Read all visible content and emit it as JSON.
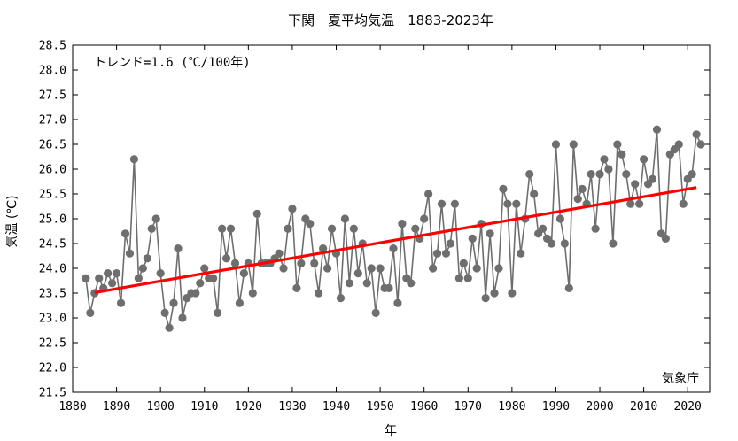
{
  "chart_data": {
    "type": "line",
    "title": "下関　夏平均気温　1883-2023年",
    "xlabel": "年",
    "ylabel": "気温 (℃)",
    "xlim": [
      1880,
      2025
    ],
    "ylim": [
      21.5,
      28.5
    ],
    "xticks": [
      1880,
      1890,
      1900,
      1910,
      1920,
      1930,
      1940,
      1950,
      1960,
      1970,
      1980,
      1990,
      2000,
      2010,
      2020
    ],
    "yticks": [
      21.5,
      22.0,
      22.5,
      23.0,
      23.5,
      24.0,
      24.5,
      25.0,
      25.5,
      26.0,
      26.5,
      27.0,
      27.5,
      28.0,
      28.5
    ],
    "grid": false,
    "annotation": "トレンド=1.6 (℃/100年)",
    "source": "気象庁",
    "colors": {
      "series": "#6e6e6e",
      "trend": "#ff0000",
      "axis": "#000000"
    },
    "series": [
      {
        "x": [
          1883,
          1884,
          1885,
          1886,
          1887,
          1888,
          1889,
          1890,
          1891,
          1892,
          1893,
          1894,
          1895,
          1896,
          1897,
          1898,
          1899,
          1900,
          1901,
          1902,
          1903,
          1904,
          1905,
          1906,
          1907,
          1908,
          1909,
          1910,
          1911,
          1912,
          1913,
          1914,
          1915,
          1916,
          1917,
          1918,
          1919,
          1920,
          1921,
          1922,
          1923,
          1924,
          1925,
          1926,
          1927,
          1928,
          1929,
          1930,
          1931,
          1932,
          1933,
          1934,
          1935,
          1936,
          1937,
          1938,
          1939,
          1940,
          1941,
          1942,
          1943,
          1944,
          1945,
          1946,
          1947,
          1948,
          1949,
          1950,
          1951,
          1952,
          1953,
          1954,
          1955,
          1956,
          1957,
          1958,
          1959,
          1960,
          1961,
          1962,
          1963,
          1964,
          1965,
          1966,
          1967,
          1968,
          1969,
          1970,
          1971,
          1972,
          1973,
          1974,
          1975,
          1976,
          1977,
          1978,
          1979,
          1980,
          1981,
          1982,
          1983,
          1984,
          1985,
          1986,
          1987,
          1988,
          1989,
          1990,
          1991,
          1992,
          1993,
          1994,
          1995,
          1996,
          1997,
          1998,
          1999,
          2000,
          2001,
          2002,
          2003,
          2004,
          2005,
          2006,
          2007,
          2008,
          2009,
          2010,
          2011,
          2012,
          2013,
          2014,
          2015,
          2016,
          2017,
          2018,
          2019,
          2020,
          2021,
          2022,
          2023
        ],
        "values": [
          23.8,
          23.1,
          23.5,
          23.8,
          23.6,
          23.9,
          23.7,
          23.9,
          23.3,
          24.7,
          24.3,
          26.2,
          23.8,
          24.0,
          24.2,
          24.8,
          25.0,
          23.9,
          23.1,
          22.8,
          23.3,
          24.4,
          23.0,
          23.4,
          23.5,
          23.5,
          23.7,
          24.0,
          23.8,
          23.8,
          23.1,
          24.8,
          24.2,
          24.8,
          24.1,
          23.3,
          23.9,
          24.1,
          23.5,
          25.1,
          24.1,
          24.1,
          24.1,
          24.2,
          24.3,
          24.0,
          24.8,
          25.2,
          23.6,
          24.1,
          25.0,
          24.9,
          24.1,
          23.5,
          24.4,
          24.0,
          24.8,
          24.3,
          23.4,
          25.0,
          23.7,
          24.8,
          23.9,
          24.5,
          23.7,
          24.0,
          23.1,
          24.0,
          23.6,
          23.6,
          24.4,
          23.3,
          24.9,
          23.8,
          23.7,
          24.8,
          24.6,
          25.0,
          25.5,
          24.0,
          24.3,
          25.3,
          24.3,
          24.5,
          25.3,
          23.8,
          24.1,
          23.8,
          24.6,
          24.0,
          24.9,
          23.4,
          24.7,
          23.5,
          24.0,
          25.6,
          25.3,
          23.5,
          25.3,
          24.3,
          25.0,
          25.9,
          25.5,
          24.7,
          24.8,
          24.6,
          24.5,
          26.5,
          25.0,
          24.5,
          23.6,
          26.5,
          25.4,
          25.6,
          25.3,
          25.9,
          24.8,
          25.9,
          26.2,
          26.0,
          24.5,
          26.5,
          26.3,
          25.9,
          25.3,
          25.7,
          25.3,
          26.2,
          25.7,
          25.8,
          26.8,
          24.7,
          24.6,
          26.3,
          26.4,
          26.5,
          25.3,
          25.8,
          25.9,
          26.7,
          26.5
        ]
      }
    ],
    "trend": {
      "x": [
        1885,
        2022
      ],
      "y": [
        23.51,
        25.63
      ]
    }
  }
}
